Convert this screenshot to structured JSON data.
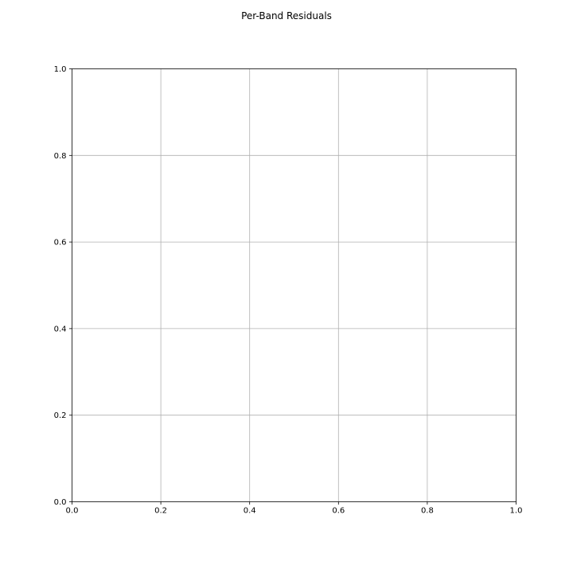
{
  "chart_data": {
    "type": "scatter",
    "title": "Per-Band Residuals",
    "xlabel": "",
    "ylabel": "",
    "xlim": [
      0.0,
      1.0
    ],
    "ylim": [
      0.0,
      1.0
    ],
    "xticks": [
      0.0,
      0.2,
      0.4,
      0.6,
      0.8,
      1.0
    ],
    "yticks": [
      0.0,
      0.2,
      0.4,
      0.6,
      0.8,
      1.0
    ],
    "xtick_labels": [
      "0.0",
      "0.2",
      "0.4",
      "0.6",
      "0.8",
      "1.0"
    ],
    "ytick_labels": [
      "0.0",
      "0.2",
      "0.4",
      "0.6",
      "0.8",
      "1.0"
    ],
    "grid": true,
    "series": [],
    "colors": {
      "grid": "#b0b0b0",
      "axes": "#000000",
      "background": "#ffffff"
    }
  }
}
